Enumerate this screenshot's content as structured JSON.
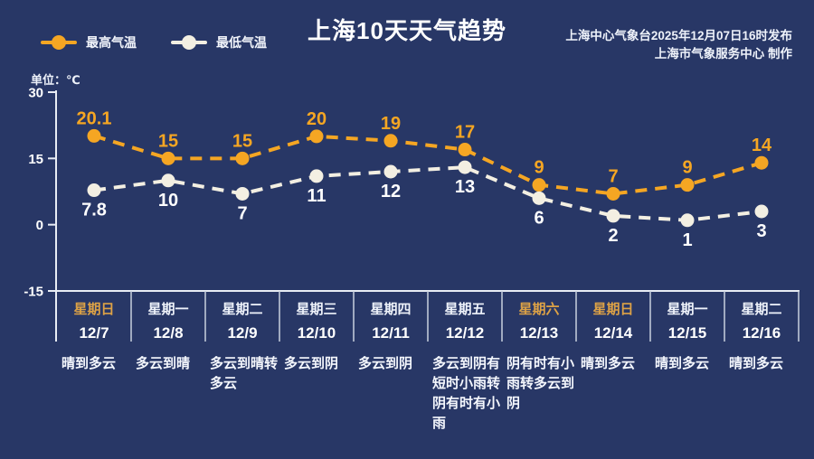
{
  "header": {
    "title": "上海10天天气趋势",
    "issued_line1": "上海中心气象台2025年12月07日16时发布",
    "issued_line2": "上海市气象服务中心  制作",
    "unit_label": "单位：℃"
  },
  "colors": {
    "background": "#283766",
    "axis": "#e8ecf4",
    "divider": "#c9d0df",
    "max_series": "#f5a623",
    "min_series": "#f3efe2",
    "min_label": "#ffffff",
    "weekend_text": "#dda246",
    "weekday_text": "#eef2fa"
  },
  "chart_data": {
    "type": "line",
    "x_labels": [
      "12/7",
      "12/8",
      "12/9",
      "12/10",
      "12/11",
      "12/12",
      "12/13",
      "12/14",
      "12/15",
      "12/16"
    ],
    "series": [
      {
        "name": "最高气温",
        "color": "#f5a623",
        "label_color": "#f5a623",
        "label_position": "above",
        "values": [
          20.1,
          15,
          15,
          20,
          19,
          17,
          9,
          7,
          9,
          14
        ]
      },
      {
        "name": "最低气温",
        "color": "#f3efe2",
        "label_color": "#ffffff",
        "label_position": "below",
        "values": [
          7.8,
          10,
          7,
          11,
          12,
          13,
          6,
          2,
          1,
          3
        ]
      }
    ],
    "yticks": [
      30,
      15,
      0,
      -15
    ],
    "ylim": [
      -15,
      30
    ],
    "ylabel": "单位：℃",
    "grid": false,
    "legend_position": "top-left",
    "line_style": "dashed"
  },
  "days": [
    {
      "weekday": "星期日",
      "date": "12/7",
      "weather": "晴到多云",
      "weekend": true
    },
    {
      "weekday": "星期一",
      "date": "12/8",
      "weather": "多云到晴",
      "weekend": false
    },
    {
      "weekday": "星期二",
      "date": "12/9",
      "weather": "多云到晴转多云",
      "weekend": false
    },
    {
      "weekday": "星期三",
      "date": "12/10",
      "weather": "多云到阴",
      "weekend": false
    },
    {
      "weekday": "星期四",
      "date": "12/11",
      "weather": "多云到阴",
      "weekend": false
    },
    {
      "weekday": "星期五",
      "date": "12/12",
      "weather": "多云到阴有短时小雨转阴有时有小雨",
      "weekend": false
    },
    {
      "weekday": "星期六",
      "date": "12/13",
      "weather": "阴有时有小雨转多云到阴",
      "weekend": true
    },
    {
      "weekday": "星期日",
      "date": "12/14",
      "weather": "晴到多云",
      "weekend": true
    },
    {
      "weekday": "星期一",
      "date": "12/15",
      "weather": "晴到多云",
      "weekend": false
    },
    {
      "weekday": "星期二",
      "date": "12/16",
      "weather": "晴到多云",
      "weekend": false
    }
  ]
}
